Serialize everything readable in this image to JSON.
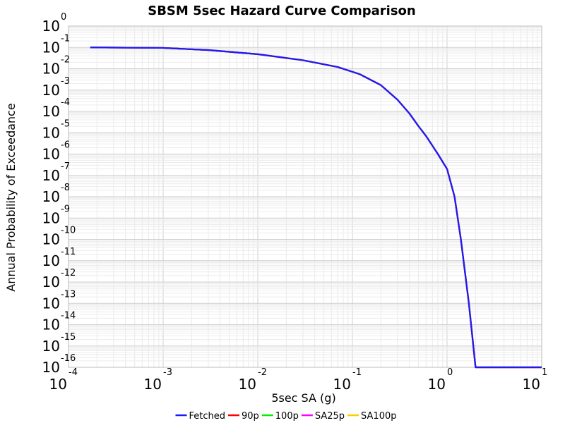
{
  "chart_data": {
    "type": "line",
    "title": "SBSM 5sec Hazard Curve Comparison",
    "xlabel": "5sec SA (g)",
    "ylabel": "Annual Probability of Exceedance",
    "x_scale": "log",
    "y_scale": "log",
    "xlim": [
      0.0001,
      10
    ],
    "ylim": [
      1e-16,
      1
    ],
    "grid": true,
    "legend_position": "bottom",
    "x_ticks": [
      {
        "base": "10",
        "exp": "-4",
        "value": 0.0001
      },
      {
        "base": "10",
        "exp": "-3",
        "value": 0.001
      },
      {
        "base": "10",
        "exp": "-2",
        "value": 0.01
      },
      {
        "base": "10",
        "exp": "-1",
        "value": 0.1
      },
      {
        "base": "10",
        "exp": "0",
        "value": 1
      },
      {
        "base": "10",
        "exp": "1",
        "value": 10
      }
    ],
    "y_ticks": [
      {
        "base": "10",
        "exp": "0",
        "value": 1
      },
      {
        "base": "10",
        "exp": "-1",
        "value": 0.1
      },
      {
        "base": "10",
        "exp": "-2",
        "value": 0.01
      },
      {
        "base": "10",
        "exp": "-3",
        "value": 0.001
      },
      {
        "base": "10",
        "exp": "-4",
        "value": 0.0001
      },
      {
        "base": "10",
        "exp": "-5",
        "value": 1e-05
      },
      {
        "base": "10",
        "exp": "-6",
        "value": 1e-06
      },
      {
        "base": "10",
        "exp": "-7",
        "value": 1e-07
      },
      {
        "base": "10",
        "exp": "-8",
        "value": 1e-08
      },
      {
        "base": "10",
        "exp": "-9",
        "value": 1e-09
      },
      {
        "base": "10",
        "exp": "-10",
        "value": 1e-10
      },
      {
        "base": "10",
        "exp": "-11",
        "value": 1e-11
      },
      {
        "base": "10",
        "exp": "-12",
        "value": 1e-12
      },
      {
        "base": "10",
        "exp": "-13",
        "value": 1e-13
      },
      {
        "base": "10",
        "exp": "-14",
        "value": 1e-14
      },
      {
        "base": "10",
        "exp": "-15",
        "value": 1e-15
      },
      {
        "base": "10",
        "exp": "-16",
        "value": 1e-16
      }
    ],
    "series": [
      {
        "name": "SA100p",
        "color": "#ffcc00",
        "x": [
          0.00017,
          0.001,
          0.003,
          0.01,
          0.03,
          0.07,
          0.12,
          0.2,
          0.3,
          0.4,
          0.5,
          0.6,
          0.8,
          1.0,
          1.2,
          1.4,
          1.7,
          2.0,
          10.0
        ],
        "y": [
          0.1,
          0.095,
          0.075,
          0.048,
          0.025,
          0.012,
          0.0055,
          0.0017,
          0.00035,
          8e-05,
          2e-05,
          7e-06,
          1e-06,
          2e-07,
          1e-08,
          1e-10,
          1e-13,
          1e-16,
          1e-16
        ]
      },
      {
        "name": "SA25p",
        "color": "#ff00ff",
        "x": [
          0.00017,
          0.001,
          0.003,
          0.01,
          0.03,
          0.07,
          0.12,
          0.2,
          0.3,
          0.4,
          0.5,
          0.6,
          0.8,
          1.0,
          1.2,
          1.4,
          1.7,
          2.0,
          10.0
        ],
        "y": [
          0.1,
          0.095,
          0.075,
          0.048,
          0.025,
          0.012,
          0.0055,
          0.0017,
          0.00035,
          8e-05,
          2e-05,
          7e-06,
          1e-06,
          2e-07,
          1e-08,
          1e-10,
          1e-13,
          1e-16,
          1e-16
        ]
      },
      {
        "name": "100p",
        "color": "#00ee00",
        "x": [
          0.00017,
          0.001,
          0.003,
          0.01,
          0.03,
          0.07,
          0.12,
          0.2,
          0.3,
          0.4,
          0.5,
          0.6,
          0.8,
          1.0,
          1.2,
          1.4,
          1.7,
          2.0,
          10.0
        ],
        "y": [
          0.1,
          0.095,
          0.075,
          0.048,
          0.025,
          0.012,
          0.0055,
          0.0017,
          0.00035,
          8e-05,
          2e-05,
          7e-06,
          1e-06,
          2e-07,
          1e-08,
          1e-10,
          1e-13,
          1e-16,
          1e-16
        ]
      },
      {
        "name": "90p",
        "color": "#ff0000",
        "x": [
          0.00017,
          0.001,
          0.003,
          0.01,
          0.03,
          0.07,
          0.12,
          0.2,
          0.3,
          0.4,
          0.5,
          0.6,
          0.8,
          1.0,
          1.2,
          1.4,
          1.7,
          2.0,
          10.0
        ],
        "y": [
          0.1,
          0.095,
          0.075,
          0.048,
          0.025,
          0.012,
          0.0055,
          0.0017,
          0.00035,
          8e-05,
          2e-05,
          7e-06,
          1e-06,
          2e-07,
          1e-08,
          1e-10,
          1e-13,
          1e-16,
          1e-16
        ]
      },
      {
        "name": "Fetched",
        "color": "#1a1aff",
        "x": [
          0.00017,
          0.001,
          0.003,
          0.01,
          0.03,
          0.07,
          0.12,
          0.2,
          0.3,
          0.4,
          0.5,
          0.6,
          0.8,
          1.0,
          1.2,
          1.4,
          1.7,
          2.0,
          10.0
        ],
        "y": [
          0.1,
          0.095,
          0.075,
          0.048,
          0.025,
          0.012,
          0.0055,
          0.0017,
          0.00035,
          8e-05,
          2e-05,
          7e-06,
          1e-06,
          2e-07,
          1e-08,
          1e-10,
          1e-13,
          1e-16,
          1e-16
        ]
      }
    ],
    "legend": [
      {
        "name": "Fetched",
        "color": "#1a1aff"
      },
      {
        "name": "90p",
        "color": "#ff0000"
      },
      {
        "name": "100p",
        "color": "#00ee00"
      },
      {
        "name": "SA25p",
        "color": "#ff00ff"
      },
      {
        "name": "SA100p",
        "color": "#ffcc00"
      }
    ]
  }
}
